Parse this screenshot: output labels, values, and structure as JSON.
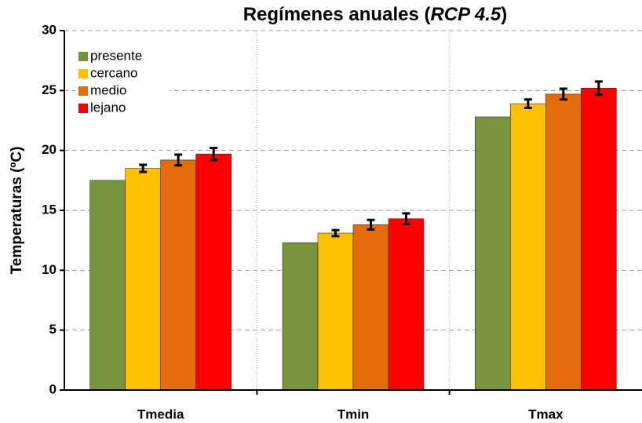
{
  "chart_data": {
    "type": "bar",
    "title": [
      "Regímenes anuales (",
      "RCP 4.5",
      ")"
    ],
    "y_label": "Temperaturas (ºC)",
    "categories": [
      "Tmedia",
      "Tmin",
      "Tmax"
    ],
    "series": [
      {
        "name": "presente",
        "color": "#77933c",
        "values": [
          17.5,
          12.3,
          22.8
        ],
        "errors": [
          null,
          null,
          null
        ]
      },
      {
        "name": "cercano",
        "color": "#ffc000",
        "values": [
          18.5,
          13.1,
          23.9
        ],
        "errors": [
          0.3,
          0.25,
          0.35
        ]
      },
      {
        "name": "medio",
        "color": "#e46c0a",
        "values": [
          19.2,
          13.8,
          24.7
        ],
        "errors": [
          0.45,
          0.4,
          0.45
        ]
      },
      {
        "name": "lejano",
        "color": "#ff0000",
        "values": [
          19.7,
          14.3,
          25.2
        ],
        "errors": [
          0.5,
          0.45,
          0.55
        ]
      }
    ],
    "ylim": [
      0,
      30
    ],
    "yticks": [
      0,
      5,
      10,
      15,
      20,
      25,
      30
    ],
    "grid": true,
    "legend": "top-left"
  }
}
